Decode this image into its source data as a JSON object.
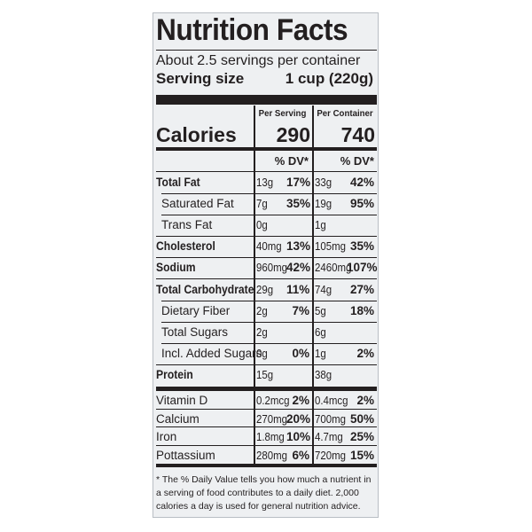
{
  "title": "Nutrition Facts",
  "servings_per_container": "About 2.5 servings per container",
  "serving_size": {
    "label": "Serving size",
    "value": "1 cup (220g)"
  },
  "columns": {
    "per_serving": "Per Serving",
    "per_container": "Per Container"
  },
  "calories": {
    "label": "Calories",
    "per_serving": "290",
    "per_container": "740"
  },
  "dv_header": "% DV*",
  "nutrients": [
    {
      "label": "Total Fat",
      "bold": true,
      "indent": false,
      "s_amt": "13g",
      "s_pct": "17%",
      "c_amt": "33g",
      "c_pct": "42%"
    },
    {
      "label": "Saturated Fat",
      "bold": false,
      "indent": true,
      "s_amt": "7g",
      "s_pct": "35%",
      "c_amt": "19g",
      "c_pct": "95%"
    },
    {
      "label": "Trans Fat",
      "bold": false,
      "indent": true,
      "s_amt": "0g",
      "s_pct": "",
      "c_amt": "1g",
      "c_pct": ""
    },
    {
      "label": "Cholesterol",
      "bold": true,
      "indent": false,
      "s_amt": "40mg",
      "s_pct": "13%",
      "c_amt": "105mg",
      "c_pct": "35%"
    },
    {
      "label": "Sodium",
      "bold": true,
      "indent": false,
      "s_amt": "960mg",
      "s_pct": "42%",
      "c_amt": "2460mg",
      "c_pct": "107%"
    },
    {
      "label": "Total Carbohydrate",
      "bold": true,
      "indent": false,
      "s_amt": "29g",
      "s_pct": "11%",
      "c_amt": "74g",
      "c_pct": "27%"
    },
    {
      "label": "Dietary Fiber",
      "bold": false,
      "indent": true,
      "s_amt": "2g",
      "s_pct": "7%",
      "c_amt": "5g",
      "c_pct": "18%"
    },
    {
      "label": "Total Sugars",
      "bold": false,
      "indent": true,
      "s_amt": "2g",
      "s_pct": "",
      "c_amt": "6g",
      "c_pct": ""
    },
    {
      "label": "Incl. Added Sugars",
      "bold": false,
      "indent": true,
      "s_amt": "0g",
      "s_pct": "0%",
      "c_amt": "1g",
      "c_pct": "2%"
    },
    {
      "label": "Protein",
      "bold": true,
      "indent": false,
      "s_amt": "15g",
      "s_pct": "",
      "c_amt": "38g",
      "c_pct": ""
    }
  ],
  "vitamins": [
    {
      "label": "Vitamin D",
      "s_amt": "0.2mcg",
      "s_pct": "2%",
      "c_amt": "0.4mcg",
      "c_pct": "2%"
    },
    {
      "label": "Calcium",
      "s_amt": "270mg",
      "s_pct": "20%",
      "c_amt": "700mg",
      "c_pct": "50%"
    },
    {
      "label": "Iron",
      "s_amt": "1.8mg",
      "s_pct": "10%",
      "c_amt": "4.7mg",
      "c_pct": "25%"
    },
    {
      "label": "Pottassium",
      "s_amt": "280mg",
      "s_pct": "6%",
      "c_amt": "720mg",
      "c_pct": "15%"
    }
  ],
  "footnote": "* The % Daily Value tells you how much a nutrient in a serving of food contributes to a daily diet. 2,000 calories a day is used for general nutrition advice."
}
